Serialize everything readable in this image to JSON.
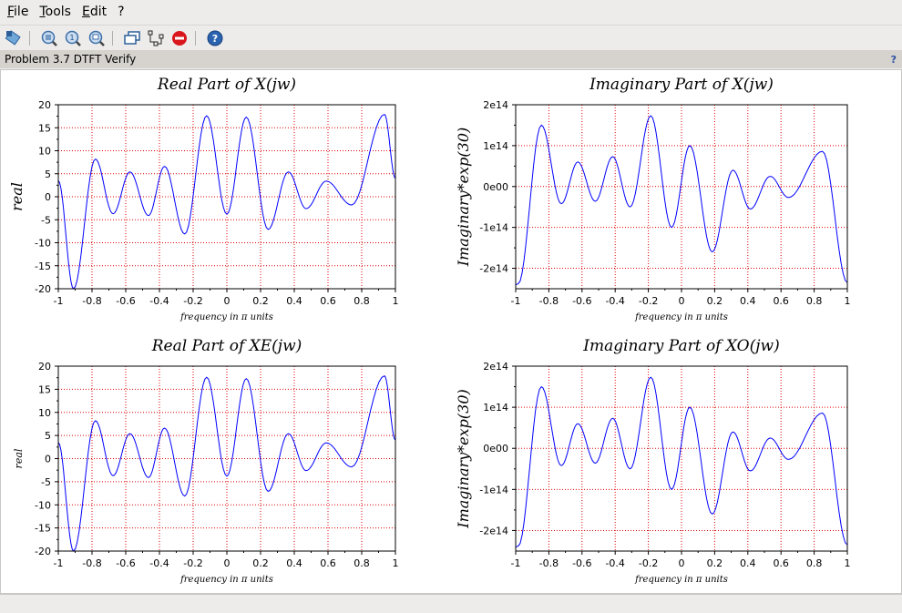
{
  "menu": [
    "File",
    "Tools",
    "Edit",
    "?"
  ],
  "toolbar": [
    "datatip-icon",
    "zoom-icon",
    "zoom-reset-icon",
    "zoom-region-icon",
    "rotate-icon",
    "editor-icon",
    "stop-icon",
    "help-icon"
  ],
  "window_title": "Problem 3.7 DTFT Verify",
  "help_mark": "?",
  "colors": {
    "curve": "#0000ff",
    "grid": "#e00000",
    "axis": "#000000"
  },
  "chart_data": [
    {
      "type": "line",
      "title": "Real Part of X(jw)",
      "xlabel": "frequency in π units",
      "ylabel": "real",
      "ylabel_small": false,
      "xlim": [
        -1,
        1
      ],
      "ylim": [
        -20,
        20
      ],
      "xticks": [
        -1,
        -0.8,
        -0.6,
        -0.4,
        -0.2,
        0,
        0.2,
        0.4,
        0.6,
        0.8,
        1
      ],
      "xtick_labels": [
        "-1",
        "-0.8",
        "-0.6",
        "-0.4",
        "-0.2",
        "0",
        "0.2",
        "0.4",
        "0.6",
        "0.8",
        "1"
      ],
      "yticks": [
        -20,
        -15,
        -10,
        -5,
        0,
        5,
        10,
        15,
        20
      ],
      "ytick_labels": [
        "-20",
        "-15",
        "-10",
        "-5",
        "0",
        "5",
        "10",
        "15",
        "20"
      ],
      "grid": true,
      "x": [
        -1,
        -0.91,
        -0.78,
        -0.675,
        -0.575,
        -0.465,
        -0.37,
        -0.25,
        -0.12,
        0,
        0.115,
        0.245,
        0.365,
        0.47,
        0.59,
        0.74,
        0.935,
        1
      ],
      "y": [
        3.5,
        -20,
        8.2,
        -3.7,
        5.4,
        -4.1,
        6.6,
        -8.1,
        17.6,
        -3.8,
        17.3,
        -7.1,
        5.4,
        -2.6,
        3.4,
        -1.8,
        17.9,
        4
      ]
    },
    {
      "type": "line",
      "title": "Imaginary Part of X(jw)",
      "xlabel": "frequency in π units",
      "ylabel": "Imaginary*exp(30)",
      "ylabel_small": false,
      "xlim": [
        -1,
        1
      ],
      "ylim": [
        -250000000000000.0,
        200000000000000.0
      ],
      "xticks": [
        -1,
        -0.8,
        -0.6,
        -0.4,
        -0.2,
        0,
        0.2,
        0.4,
        0.6,
        0.8,
        1
      ],
      "xtick_labels": [
        "-1",
        "-0.8",
        "-0.6",
        "-0.4",
        "-0.2",
        "0",
        "0.2",
        "0.4",
        "0.6",
        "0.8",
        "1"
      ],
      "yticks": [
        -200000000000000.0,
        -100000000000000.0,
        0,
        100000000000000.0,
        200000000000000.0
      ],
      "ytick_labels": [
        "-2e14",
        "-1e14",
        "0e00",
        "1e14",
        "2e14"
      ],
      "grid": true,
      "x": [
        -1,
        -0.985,
        -0.845,
        -0.725,
        -0.625,
        -0.52,
        -0.415,
        -0.31,
        -0.185,
        -0.06,
        0.05,
        0.185,
        0.31,
        0.415,
        0.535,
        0.645,
        0.85,
        1
      ],
      "y": [
        -240000000000000.0,
        -238000000000000.0,
        150000000000000.0,
        -42000000000000.0,
        60000000000000.0,
        -36000000000000.0,
        73000000000000.0,
        -50000000000000.0,
        173000000000000.0,
        -100000000000000.0,
        100000000000000.0,
        -160000000000000.0,
        40000000000000.0,
        -55000000000000.0,
        25000000000000.0,
        -27000000000000.0,
        86000000000000.0,
        -235000000000000.0
      ]
    },
    {
      "type": "line",
      "title": "Real Part of XE(jw)",
      "xlabel": "frequency in π units",
      "ylabel": "real",
      "ylabel_small": true,
      "xlim": [
        -1,
        1
      ],
      "ylim": [
        -20,
        20
      ],
      "xticks": [
        -1,
        -0.8,
        -0.6,
        -0.4,
        -0.2,
        0,
        0.2,
        0.4,
        0.6,
        0.8,
        1
      ],
      "xtick_labels": [
        "-1",
        "-0.8",
        "-0.6",
        "-0.4",
        "-0.2",
        "0",
        "0.2",
        "0.4",
        "0.6",
        "0.8",
        "1"
      ],
      "yticks": [
        -20,
        -15,
        -10,
        -5,
        0,
        5,
        10,
        15,
        20
      ],
      "ytick_labels": [
        "-20",
        "-15",
        "-10",
        "-5",
        "0",
        "5",
        "10",
        "15",
        "20"
      ],
      "grid": true,
      "x": [
        -1,
        -0.91,
        -0.78,
        -0.675,
        -0.575,
        -0.465,
        -0.37,
        -0.25,
        -0.12,
        0,
        0.115,
        0.245,
        0.365,
        0.47,
        0.59,
        0.74,
        0.935,
        1
      ],
      "y": [
        3.5,
        -20,
        8.2,
        -3.7,
        5.4,
        -4.1,
        6.6,
        -8.1,
        17.6,
        -3.8,
        17.3,
        -7.1,
        5.4,
        -2.6,
        3.4,
        -1.8,
        17.9,
        4
      ]
    },
    {
      "type": "line",
      "title": "Imaginary Part of XO(jw)",
      "xlabel": "frequency in π units",
      "ylabel": "Imaginary*exp(30)",
      "ylabel_small": false,
      "xlim": [
        -1,
        1
      ],
      "ylim": [
        -250000000000000.0,
        200000000000000.0
      ],
      "xticks": [
        -1,
        -0.8,
        -0.6,
        -0.4,
        -0.2,
        0,
        0.2,
        0.4,
        0.6,
        0.8,
        1
      ],
      "xtick_labels": [
        "-1",
        "-0.8",
        "-0.6",
        "-0.4",
        "-0.2",
        "0",
        "0.2",
        "0.4",
        "0.6",
        "0.8",
        "1"
      ],
      "yticks": [
        -200000000000000.0,
        -100000000000000.0,
        0,
        100000000000000.0,
        200000000000000.0
      ],
      "ytick_labels": [
        "-2e14",
        "-1e14",
        "0e00",
        "1e14",
        "2e14"
      ],
      "grid": true,
      "x": [
        -1,
        -0.985,
        -0.845,
        -0.725,
        -0.625,
        -0.52,
        -0.415,
        -0.31,
        -0.185,
        -0.06,
        0.05,
        0.185,
        0.31,
        0.415,
        0.535,
        0.645,
        0.85,
        1
      ],
      "y": [
        -240000000000000.0,
        -238000000000000.0,
        150000000000000.0,
        -42000000000000.0,
        60000000000000.0,
        -36000000000000.0,
        73000000000000.0,
        -50000000000000.0,
        173000000000000.0,
        -100000000000000.0,
        100000000000000.0,
        -160000000000000.0,
        40000000000000.0,
        -55000000000000.0,
        25000000000000.0,
        -27000000000000.0,
        86000000000000.0,
        -235000000000000.0
      ]
    }
  ]
}
